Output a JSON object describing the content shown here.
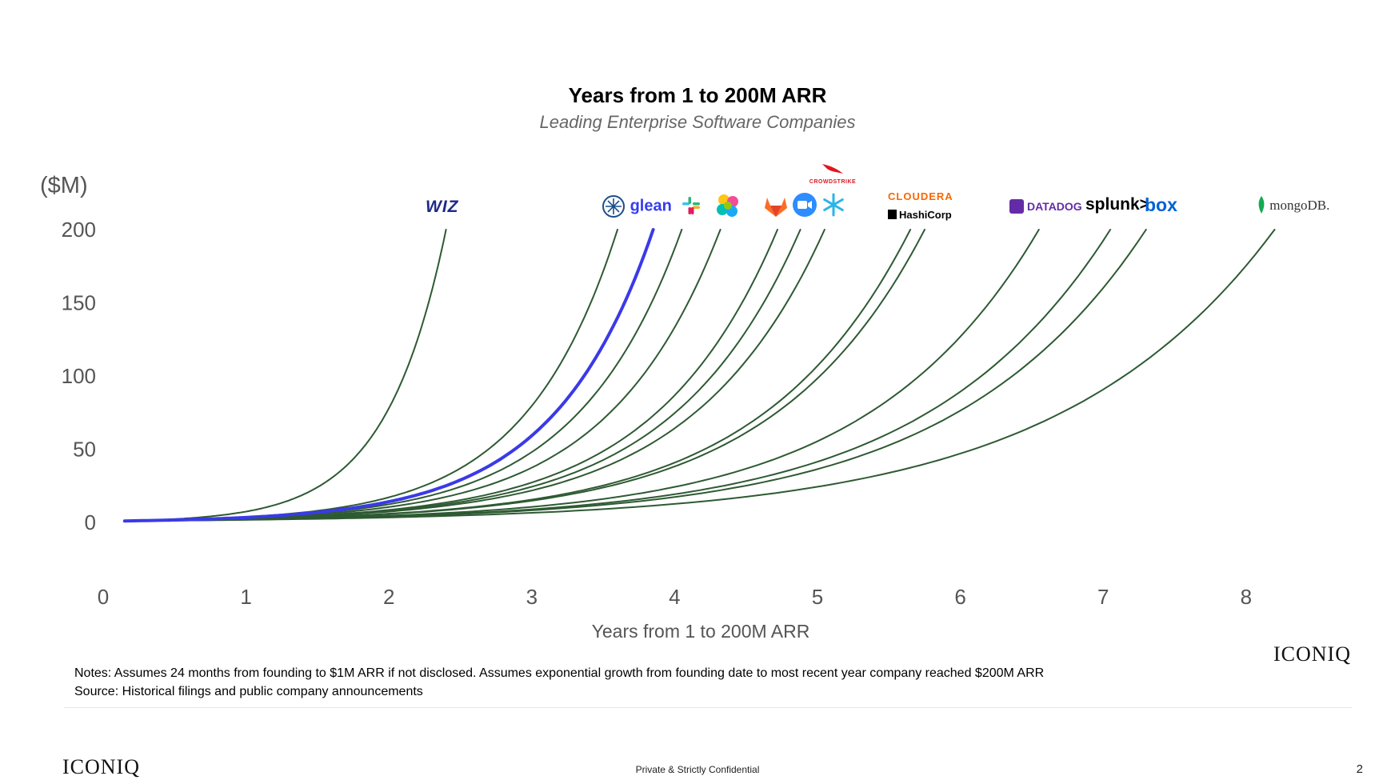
{
  "header": {
    "title": "Years from 1 to 200M ARR",
    "subtitle": "Leading Enterprise Software Companies"
  },
  "chart_data": {
    "type": "line",
    "title": "Years from 1 to 200M ARR",
    "subtitle": "Leading Enterprise Software Companies",
    "xlabel": "Years from 1 to 200M ARR",
    "ylabel": "($M)",
    "xlim": [
      0,
      8.7
    ],
    "ylim": [
      0,
      200
    ],
    "x_ticks": [
      "0",
      "1",
      "2",
      "3",
      "4",
      "5",
      "6",
      "7",
      "8"
    ],
    "y_ticks": [
      "200",
      "150",
      "100",
      "50",
      "0"
    ],
    "grid": false,
    "legend": "logos-above-curves",
    "start_x": 0.15,
    "start_y": 1,
    "highlight_color": "#3a3ae8",
    "line_color": "#2e5a33",
    "series": [
      {
        "logo": "wiz",
        "end_x": 2.4,
        "highlight": false
      },
      {
        "logo": "glean",
        "end_x": 3.6,
        "highlight": false
      },
      {
        "logo": "slack",
        "end_x": 3.85,
        "highlight": true
      },
      {
        "logo": "elastic",
        "end_x": 4.05,
        "highlight": false
      },
      {
        "logo": "elastic-2",
        "end_x": 4.32,
        "highlight": false
      },
      {
        "logo": "gitlab",
        "end_x": 4.72,
        "highlight": false
      },
      {
        "logo": "zoom",
        "end_x": 4.88,
        "highlight": false
      },
      {
        "logo": "snowflake",
        "end_x": 5.05,
        "highlight": false
      },
      {
        "logo": "cloudera",
        "end_x": 5.65,
        "highlight": false
      },
      {
        "logo": "hashicorp",
        "end_x": 5.75,
        "highlight": false
      },
      {
        "logo": "datadog",
        "end_x": 6.55,
        "highlight": false
      },
      {
        "logo": "splunk",
        "end_x": 7.05,
        "highlight": false
      },
      {
        "logo": "box",
        "end_x": 7.3,
        "highlight": false
      },
      {
        "logo": "mongodb",
        "end_x": 8.2,
        "highlight": false
      }
    ]
  },
  "logos": {
    "wiz": "WIZ",
    "glean": "glean",
    "crowdstrike": "CROWDSTRIKE",
    "cloudera": "CLOUDERA",
    "hashicorp": "HashiCorp",
    "datadog": "DATADOG",
    "splunk": "splunk>",
    "box": "box",
    "mongodb": "mongoDB."
  },
  "notes": {
    "line1": "Notes: Assumes 24 months from founding to $1M ARR if not disclosed. Assumes exponential growth from founding date to most recent year company reached $200M ARR",
    "line2": "Source: Historical filings and public company announcements"
  },
  "footer": {
    "brand_corner": "ICONIQ",
    "brand": "ICONIQ",
    "confidential": "Private & Strictly Confidential",
    "page": "2"
  }
}
